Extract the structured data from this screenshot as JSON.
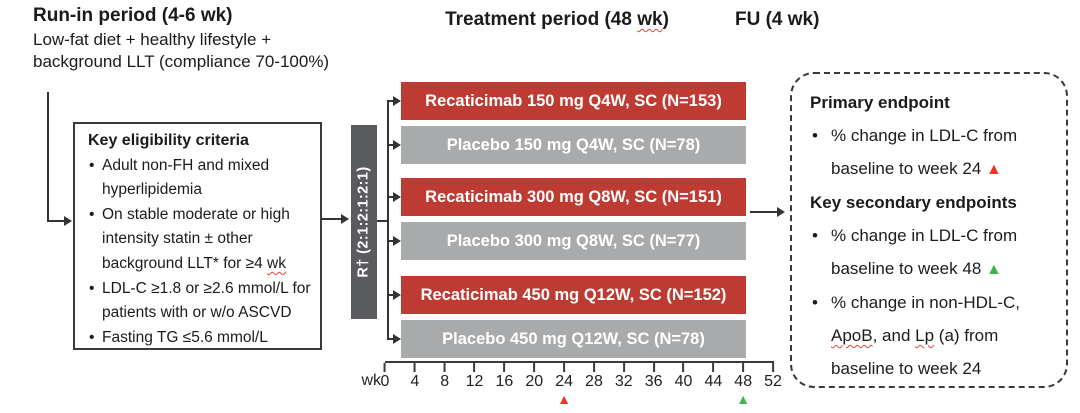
{
  "palette": {
    "drug_bar": "#BE3B33",
    "placebo_bar": "#A8AAAC",
    "randomization_bar": "#595B5E",
    "marker_red": "#EE3425",
    "marker_green": "#3DB54A",
    "squiggle_red": "#e0443a"
  },
  "headers": {
    "runin_title": "Run-in period (4-6 wk)",
    "runin_line1": "Low-fat diet + healthy lifestyle +",
    "runin_line2": "background LLT (compliance 70-100%)",
    "treatment_pre": "Treatment period (48 ",
    "treatment_wk": "wk",
    "treatment_post": ")",
    "fu": "FU (4 wk)"
  },
  "eligibility": {
    "title": "Key eligibility criteria",
    "bullet": "•",
    "item1": "Adult non-FH and mixed hyperlipidemia",
    "item2_pre": "On stable moderate or high intensity statin ± other background LLT* for ≥4 ",
    "item2_wk": "wk",
    "item3": "LDL-C ≥1.8 or ≥2.6 mmol/L for patients with or w/o ASCVD",
    "item4": "Fasting TG ≤5.6 mmol/L"
  },
  "randomization": {
    "label": "R† (2:1:2:1:2:1)"
  },
  "arms": [
    {
      "label": "Recaticimab 150 mg Q4W, SC (N=153)",
      "type": "drug"
    },
    {
      "label": "Placebo 150 mg Q4W, SC (N=78)",
      "type": "placebo"
    },
    {
      "label": "Recaticimab 300 mg Q8W, SC (N=151)",
      "type": "drug"
    },
    {
      "label": "Placebo 300 mg Q8W, SC (N=77)",
      "type": "placebo"
    },
    {
      "label": "Recaticimab 450 mg Q12W, SC (N=152)",
      "type": "drug"
    },
    {
      "label": "Placebo 450 mg Q12W, SC (N=78)",
      "type": "placebo"
    }
  ],
  "axis": {
    "unit": "wk",
    "ticks": [
      "0",
      "4",
      "8",
      "12",
      "16",
      "20",
      "24",
      "28",
      "32",
      "36",
      "40",
      "44",
      "48",
      "52"
    ],
    "markers": [
      {
        "week": 24,
        "symbol": "▲",
        "color": "#EE3425",
        "name": "week-24-marker-icon"
      },
      {
        "week": 48,
        "symbol": "▲",
        "color": "#3DB54A",
        "name": "week-48-marker-icon"
      }
    ]
  },
  "endpoints": {
    "primary_title": "Primary endpoint",
    "bullet": "•",
    "primary_text": "% change in LDL-C from baseline to week 24 ",
    "primary_marker": "▲",
    "secondary_title": "Key secondary endpoints",
    "secondary1_text": "% change in LDL-C from baseline to week 48 ",
    "secondary1_marker": "▲",
    "secondary2_seg1": "% change in non-HDL-C, ",
    "secondary2_seg2": "ApoB",
    "secondary2_seg3": ", and ",
    "secondary2_seg4": "Lp",
    "secondary2_seg5": " (a) from baseline to week 24"
  }
}
